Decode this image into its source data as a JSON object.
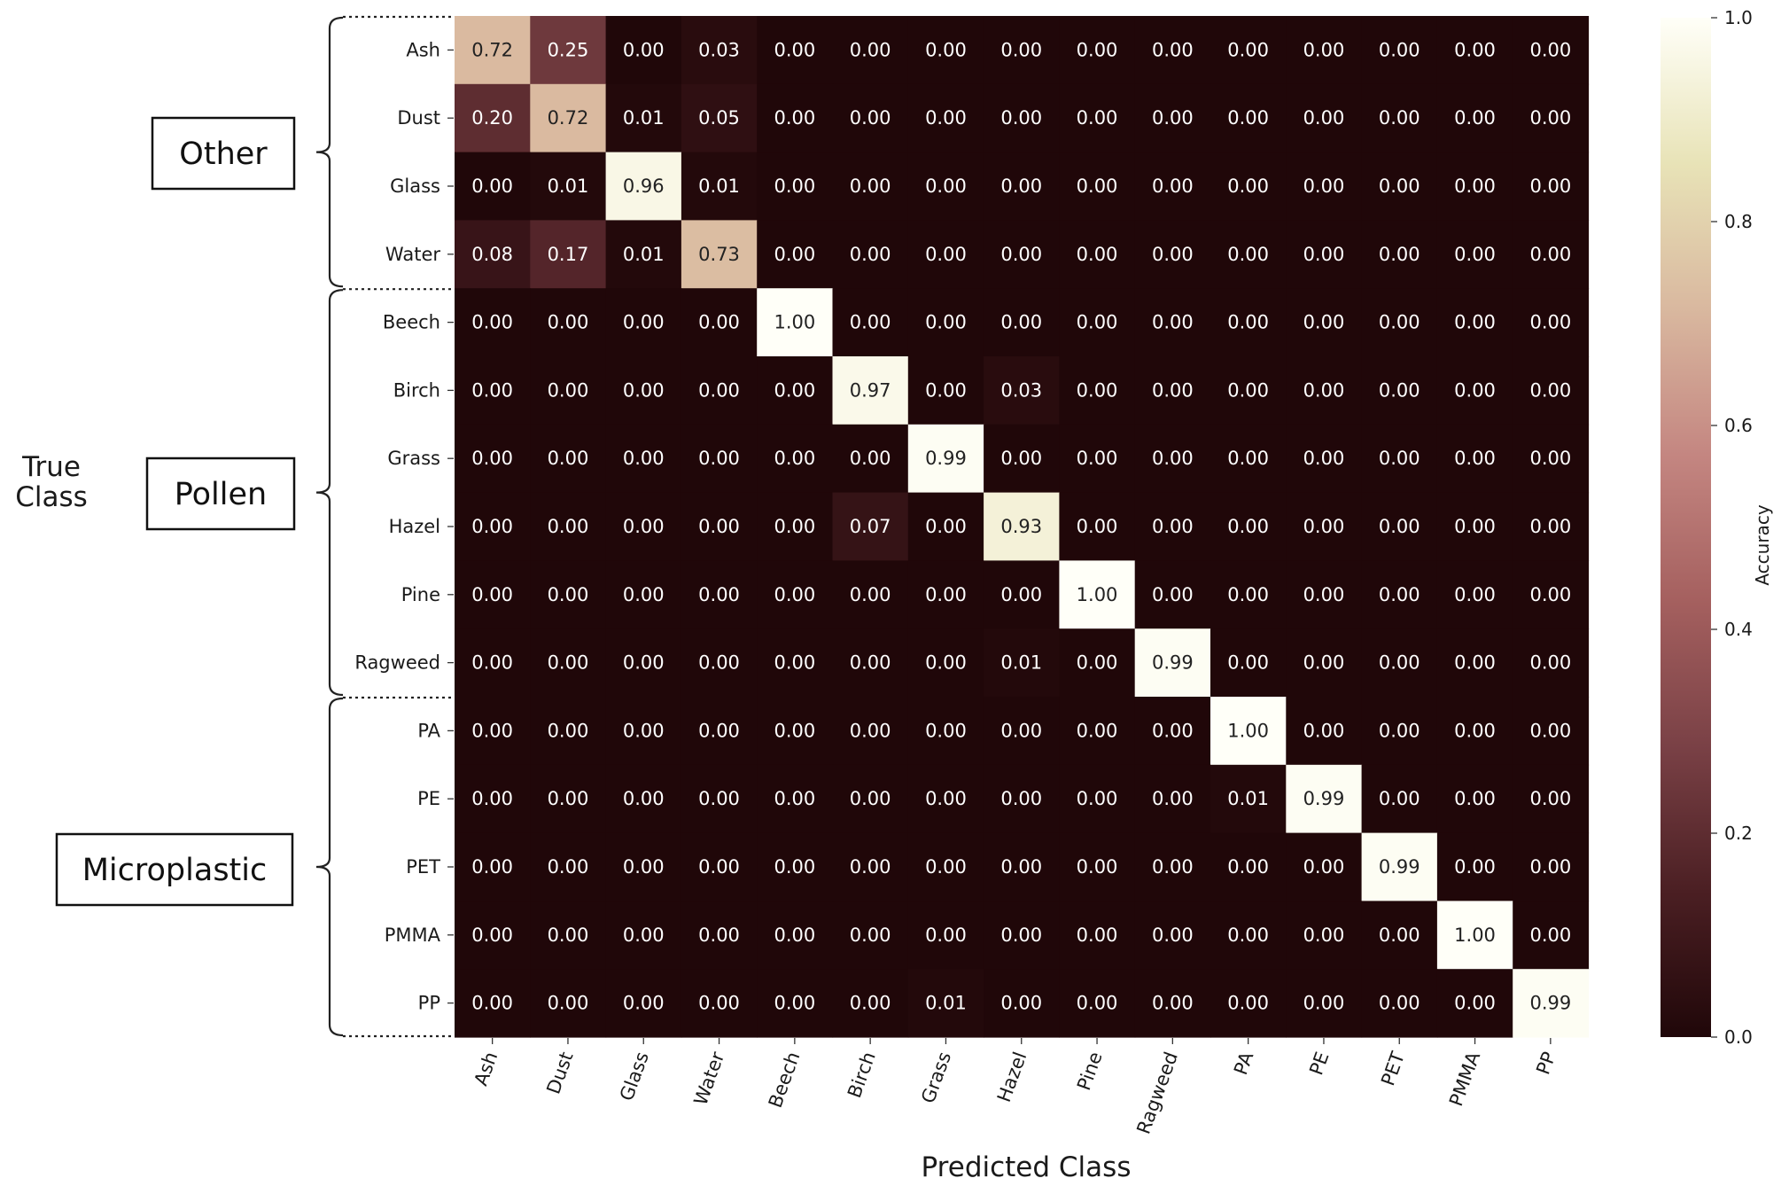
{
  "chart_data": {
    "type": "heatmap",
    "xlabel": "Predicted Class",
    "ylabel": "True Class",
    "row_categories": [
      "Ash",
      "Dust",
      "Glass",
      "Water",
      "Beech",
      "Birch",
      "Grass",
      "Hazel",
      "Pine",
      "Ragweed",
      "PA",
      "PE",
      "PET",
      "PMMA",
      "PP"
    ],
    "col_categories": [
      "Ash",
      "Dust",
      "Glass",
      "Water",
      "Beech",
      "Birch",
      "Grass",
      "Hazel",
      "Pine",
      "Ragweed",
      "PA",
      "PE",
      "PET",
      "PMMA",
      "PP"
    ],
    "values": [
      [
        0.72,
        0.25,
        0.0,
        0.03,
        0.0,
        0.0,
        0.0,
        0.0,
        0.0,
        0.0,
        0.0,
        0.0,
        0.0,
        0.0,
        0.0
      ],
      [
        0.2,
        0.72,
        0.01,
        0.05,
        0.0,
        0.0,
        0.0,
        0.0,
        0.0,
        0.0,
        0.0,
        0.0,
        0.0,
        0.0,
        0.0
      ],
      [
        0.0,
        0.01,
        0.96,
        0.01,
        0.0,
        0.0,
        0.0,
        0.0,
        0.0,
        0.0,
        0.0,
        0.0,
        0.0,
        0.0,
        0.0
      ],
      [
        0.08,
        0.17,
        0.01,
        0.73,
        0.0,
        0.0,
        0.0,
        0.0,
        0.0,
        0.0,
        0.0,
        0.0,
        0.0,
        0.0,
        0.0
      ],
      [
        0.0,
        0.0,
        0.0,
        0.0,
        1.0,
        0.0,
        0.0,
        0.0,
        0.0,
        0.0,
        0.0,
        0.0,
        0.0,
        0.0,
        0.0
      ],
      [
        0.0,
        0.0,
        0.0,
        0.0,
        0.0,
        0.97,
        0.0,
        0.03,
        0.0,
        0.0,
        0.0,
        0.0,
        0.0,
        0.0,
        0.0
      ],
      [
        0.0,
        0.0,
        0.0,
        0.0,
        0.0,
        0.0,
        0.99,
        0.0,
        0.0,
        0.0,
        0.0,
        0.0,
        0.0,
        0.0,
        0.0
      ],
      [
        0.0,
        0.0,
        0.0,
        0.0,
        0.0,
        0.07,
        0.0,
        0.93,
        0.0,
        0.0,
        0.0,
        0.0,
        0.0,
        0.0,
        0.0
      ],
      [
        0.0,
        0.0,
        0.0,
        0.0,
        0.0,
        0.0,
        0.0,
        0.0,
        1.0,
        0.0,
        0.0,
        0.0,
        0.0,
        0.0,
        0.0
      ],
      [
        0.0,
        0.0,
        0.0,
        0.0,
        0.0,
        0.0,
        0.0,
        0.01,
        0.0,
        0.99,
        0.0,
        0.0,
        0.0,
        0.0,
        0.0
      ],
      [
        0.0,
        0.0,
        0.0,
        0.0,
        0.0,
        0.0,
        0.0,
        0.0,
        0.0,
        0.0,
        1.0,
        0.0,
        0.0,
        0.0,
        0.0
      ],
      [
        0.0,
        0.0,
        0.0,
        0.0,
        0.0,
        0.0,
        0.0,
        0.0,
        0.0,
        0.0,
        0.01,
        0.99,
        0.0,
        0.0,
        0.0
      ],
      [
        0.0,
        0.0,
        0.0,
        0.0,
        0.0,
        0.0,
        0.0,
        0.0,
        0.0,
        0.0,
        0.0,
        0.0,
        0.99,
        0.0,
        0.0
      ],
      [
        0.0,
        0.0,
        0.0,
        0.0,
        0.0,
        0.0,
        0.0,
        0.0,
        0.0,
        0.0,
        0.0,
        0.0,
        0.0,
        1.0,
        0.0
      ],
      [
        0.0,
        0.0,
        0.0,
        0.0,
        0.0,
        0.0,
        0.01,
        0.0,
        0.0,
        0.0,
        0.0,
        0.0,
        0.0,
        0.0,
        0.99
      ]
    ],
    "groups": [
      {
        "label": "Other",
        "from_row": 0,
        "to_row": 3
      },
      {
        "label": "Pollen",
        "from_row": 4,
        "to_row": 9
      },
      {
        "label": "Microplastic",
        "from_row": 10,
        "to_row": 14
      }
    ],
    "colorbar": {
      "label": "Accuracy",
      "range": [
        0.0,
        1.0
      ],
      "ticks": [
        "0.0",
        "0.2",
        "0.4",
        "0.6",
        "0.8",
        "1.0"
      ],
      "colormap": [
        "#200709",
        "#4b1f23",
        "#7a4146",
        "#a5605f",
        "#c48681",
        "#d9b89f",
        "#e8e3b7",
        "#fffff8"
      ]
    },
    "grid": false
  }
}
